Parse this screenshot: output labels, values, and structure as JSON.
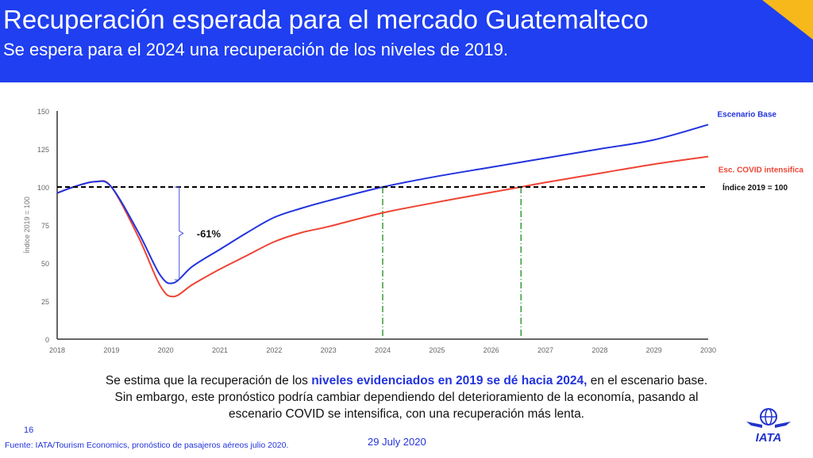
{
  "header": {
    "title": "Recuperación esperada para el mercado Guatemalteco",
    "subtitle": "Se espera para el 2024 una recuperación de los niveles de 2019.",
    "accent": "#1f3ff0",
    "corner_color": "#f7b81b"
  },
  "chart_data": {
    "type": "line",
    "ylabel": "Índice 2019 = 100",
    "ylim": [
      0,
      150
    ],
    "yticks": [
      0,
      25,
      50,
      75,
      100,
      125,
      150
    ],
    "xlim": [
      2018,
      2030
    ],
    "xticks": [
      "2018",
      "2019",
      "2020",
      "2021",
      "2022",
      "2023",
      "2024",
      "2025",
      "2026",
      "2027",
      "2028",
      "2029",
      "2030"
    ],
    "grid": false,
    "series": [
      {
        "name": "Escenario Base",
        "color": "#2233dd",
        "x": [
          2018,
          2018.3,
          2018.7,
          2019,
          2019.5,
          2019.9,
          2020.15,
          2020.5,
          2021,
          2021.5,
          2022,
          2022.5,
          2023,
          2024,
          2025,
          2026,
          2027,
          2028,
          2029,
          2030
        ],
        "y": [
          96,
          100,
          103.5,
          100,
          70,
          42,
          37,
          48,
          59,
          70,
          80,
          86,
          91,
          100,
          107,
          113,
          119,
          125,
          131,
          141
        ]
      },
      {
        "name": "Esc. COVID intensifica",
        "color": "#ee4433",
        "x": [
          2018,
          2018.3,
          2018.7,
          2019,
          2019.5,
          2019.9,
          2020.15,
          2020.5,
          2021,
          2021.5,
          2022,
          2022.5,
          2023,
          2024,
          2025,
          2026,
          2026.55,
          2027,
          2028,
          2029,
          2030
        ],
        "y": [
          96,
          100,
          103.5,
          100,
          67,
          35,
          28,
          36,
          46,
          55,
          64,
          70,
          74,
          83,
          90,
          96.5,
          100,
          103,
          109,
          115,
          120
        ]
      }
    ],
    "reference_line": {
      "y": 100,
      "label": "Índice 2019 = 100"
    },
    "recovery_markers": [
      2024,
      2026.55
    ],
    "annotation": {
      "text": "-61%",
      "x": 2020.25,
      "from": 100,
      "to": 39
    }
  },
  "summary": {
    "line1_a": "Se estima que la recuperación de los ",
    "line1_highlight": "niveles evidenciados en 2019 se dé hacia 2024,",
    "line1_b": " en el escenario base.",
    "line2": "Sin embargo, este pronóstico podría cambiar dependiendo del deterioramiento de la economía, pasando al",
    "line3": "escenario COVID se intensifica, con una recuperación más lenta."
  },
  "footer": {
    "page": "16",
    "source": "Fuente: IATA/Tourism Economics, pronóstico de pasajeros aéreos julio 2020.",
    "date": "29 July 2020",
    "logo_text": "IATA"
  }
}
